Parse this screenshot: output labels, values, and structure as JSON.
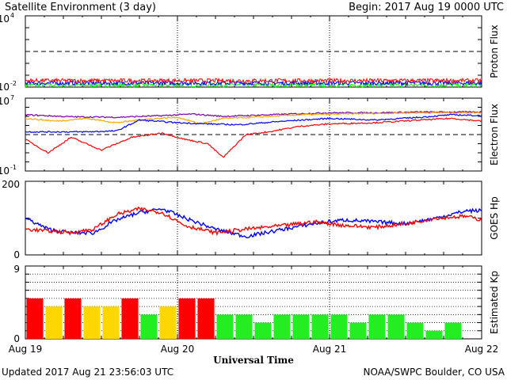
{
  "header": {
    "title": "Satellite Environment (3 day)",
    "begin": "Begin:  2017 Aug 19 0000 UTC"
  },
  "footer": {
    "updated": "Updated 2017 Aug 21 23:56:03 UTC",
    "credit": "NOAA/SWPC Boulder, CO USA"
  },
  "x_axis": {
    "label": "Universal Time",
    "ticks": [
      "Aug 19",
      "Aug 20",
      "Aug 21",
      "Aug 22"
    ]
  },
  "colors": {
    "red": "#ff0000",
    "blue": "#0000ff",
    "green": "#00ff00",
    "orange": "#ffa500",
    "purple": "#7700aa",
    "kp_red": "#ff0000",
    "kp_yellow": "#ffd700",
    "kp_green": "#22ee22"
  },
  "chart_data": [
    {
      "type": "line",
      "ylabel": "Proton Flux",
      "yscale": "log",
      "ylim": [
        0.01,
        10000
      ],
      "yticks": [
        {
          "base": "10",
          "exp": "-2"
        },
        {
          "base": "10",
          "exp": "4"
        }
      ],
      "threshold": 10,
      "x_range_days": [
        0,
        3
      ],
      "series": [
        {
          "color": "red",
          "baseline": 0.035
        },
        {
          "color": "blue",
          "baseline": 0.022
        },
        {
          "color": "green",
          "baseline": 0.015
        }
      ]
    },
    {
      "type": "line",
      "ylabel": "Electron Flux",
      "yscale": "log",
      "ylim": [
        0.1,
        10000000
      ],
      "yticks": [
        {
          "base": "10",
          "exp": "-1"
        },
        {
          "base": "10",
          "exp": "7"
        }
      ],
      "threshold": 1000,
      "x_range_days": [
        0,
        3
      ],
      "series": [
        {
          "color": "purple",
          "x": [
            0,
            0.3,
            0.6,
            0.9,
            1.1,
            1.3,
            1.6,
            2,
            2.3,
            2.6,
            3
          ],
          "y": [
            150000,
            90000,
            80000,
            120000,
            180000,
            100000,
            150000,
            250000,
            250000,
            300000,
            300000
          ]
        },
        {
          "color": "orange",
          "x": [
            0,
            0.2,
            0.4,
            0.6,
            0.8,
            1,
            1.15,
            1.3,
            1.5,
            1.8,
            2.2,
            2.6,
            3
          ],
          "y": [
            60000,
            30000,
            60000,
            20000,
            50000,
            80000,
            15000,
            60000,
            80000,
            150000,
            200000,
            250000,
            250000
          ]
        },
        {
          "color": "blue",
          "x": [
            0,
            0.1,
            0.4,
            0.6,
            0.75,
            1,
            1.2,
            1.4,
            1.7,
            2,
            2.3,
            2.6,
            2.8,
            3
          ],
          "y": [
            2000,
            2000,
            2000,
            2500,
            40000,
            20000,
            15000,
            12000,
            30000,
            60000,
            40000,
            80000,
            150000,
            120000
          ]
        },
        {
          "color": "red",
          "x": [
            0,
            0.15,
            0.3,
            0.5,
            0.7,
            0.9,
            1.05,
            1.2,
            1.3,
            1.45,
            1.6,
            1.8,
            2,
            2.3,
            2.6,
            2.8,
            3
          ],
          "y": [
            300,
            10,
            500,
            20,
            500,
            1500,
            300,
            100,
            3,
            1000,
            2000,
            8000,
            15000,
            20000,
            40000,
            60000,
            30000
          ]
        }
      ]
    },
    {
      "type": "line",
      "ylabel": "GOES Hp",
      "ylim": [
        0,
        200
      ],
      "yticks": [
        "0",
        "200"
      ],
      "x_range_days": [
        0,
        3
      ],
      "series": [
        {
          "color": "blue",
          "x": [
            0,
            0.15,
            0.3,
            0.45,
            0.6,
            0.75,
            0.9,
            1.05,
            1.25,
            1.45,
            1.7,
            1.9,
            2.1,
            2.3,
            2.5,
            2.7,
            2.9,
            3
          ],
          "y": [
            100,
            70,
            60,
            60,
            95,
            115,
            125,
            100,
            70,
            50,
            70,
            85,
            95,
            90,
            85,
            100,
            120,
            120
          ]
        },
        {
          "color": "red",
          "x": [
            0,
            0.15,
            0.3,
            0.45,
            0.6,
            0.75,
            0.9,
            1.05,
            1.25,
            1.45,
            1.7,
            1.9,
            2.1,
            2.3,
            2.5,
            2.7,
            2.9,
            3
          ],
          "y": [
            70,
            65,
            60,
            70,
            110,
            125,
            115,
            80,
            60,
            70,
            80,
            90,
            80,
            75,
            85,
            100,
            105,
            95
          ]
        }
      ]
    },
    {
      "type": "bar",
      "ylabel": "Estimated Kp",
      "ylim": [
        0,
        9
      ],
      "yticks": [
        "0",
        "9"
      ],
      "bar_width_hours": 3,
      "values": [
        5,
        4,
        5,
        4,
        4,
        5,
        3,
        4,
        5,
        5,
        3,
        3,
        2,
        3,
        3,
        3,
        3,
        2,
        3,
        3,
        2,
        1,
        2
      ],
      "bar_colors": [
        "red",
        "yellow",
        "red",
        "yellow",
        "yellow",
        "red",
        "green",
        "yellow",
        "red",
        "red",
        "green",
        "green",
        "green",
        "green",
        "green",
        "green",
        "green",
        "green",
        "green",
        "green",
        "green",
        "green",
        "green"
      ]
    }
  ]
}
